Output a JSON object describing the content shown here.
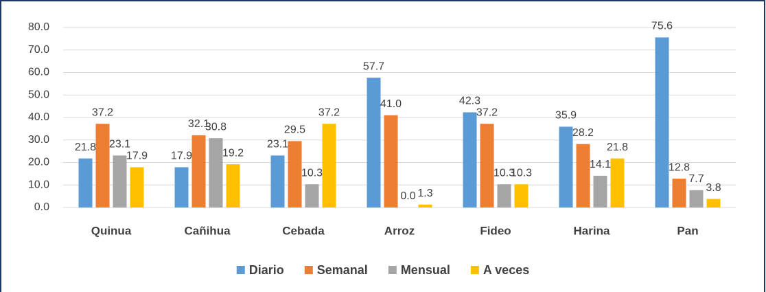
{
  "chart_data": {
    "type": "bar",
    "categories": [
      "Quinua",
      "Cañihua",
      "Cebada",
      "Arroz",
      "Fideo",
      "Harina",
      "Pan"
    ],
    "series": [
      {
        "name": "Diario",
        "color": "#5b9bd5",
        "values": [
          21.8,
          17.9,
          23.1,
          57.7,
          42.3,
          35.9,
          75.6
        ],
        "value_labels": [
          "21.8",
          "17.9",
          "23.1",
          "57.7",
          "42.3",
          "35.9",
          "75.6"
        ]
      },
      {
        "name": "Semanal",
        "color": "#ed7d31",
        "values": [
          37.2,
          32.1,
          29.5,
          41.0,
          37.2,
          28.2,
          12.8
        ],
        "value_labels": [
          "37.2",
          "32.1",
          "29.5",
          "41.0",
          "37.2",
          "28.2",
          "12.8"
        ]
      },
      {
        "name": "Mensual",
        "color": "#a5a5a5",
        "values": [
          23.1,
          30.8,
          10.3,
          0.0,
          10.3,
          14.1,
          7.7
        ],
        "value_labels": [
          "23.1",
          "30.8",
          "10.3",
          "0.0",
          "10.3",
          "14.1",
          "7.7"
        ]
      },
      {
        "name": "A veces",
        "color": "#ffc000",
        "values": [
          17.9,
          19.2,
          37.2,
          1.3,
          10.3,
          21.8,
          3.8
        ],
        "value_labels": [
          "17.9",
          "19.2",
          "37.2",
          "1.3",
          "10.3",
          "21.8",
          "3.8"
        ]
      }
    ],
    "ylim": [
      0,
      80
    ],
    "yticks": [
      {
        "value": 0,
        "label": "0.0"
      },
      {
        "value": 10,
        "label": "10.0"
      },
      {
        "value": 20,
        "label": "20.0"
      },
      {
        "value": 30,
        "label": "30.0"
      },
      {
        "value": 40,
        "label": "40.0"
      },
      {
        "value": 50,
        "label": "50.0"
      },
      {
        "value": 60,
        "label": "60.0"
      },
      {
        "value": 70,
        "label": "70.0"
      },
      {
        "value": 80,
        "label": "80.0"
      }
    ],
    "legend": "bottom"
  }
}
